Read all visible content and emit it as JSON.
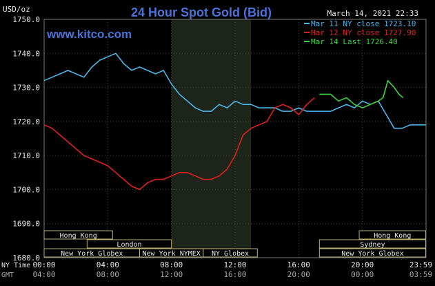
{
  "header": {
    "unit_label": "USD/oz",
    "title": "24 Hour Spot Gold (Bid)",
    "timestamp": "March 14, 2021 22:33",
    "watermark": "www.kitco.com"
  },
  "time_rows": [
    {
      "label": "NY Time",
      "ticks": [
        "00:00",
        "04:00",
        "08:00",
        "12:00",
        "16:00",
        "20:00",
        "23:59"
      ]
    },
    {
      "label": "GMT",
      "ticks": [
        "04:00",
        "08:00",
        "12:00",
        "16:00",
        "20:00",
        "00:00",
        "03:59"
      ]
    }
  ],
  "market_sessions": [
    {
      "name": "Hong Kong",
      "row": 0,
      "start_hour": 0.0,
      "end_hour": 4.3
    },
    {
      "name": "London",
      "row": 1,
      "start_hour": 2.7,
      "end_hour": 8.0
    },
    {
      "name": "New York Globex",
      "row": 2,
      "start_hour": 0.0,
      "end_hour": 6.0
    },
    {
      "name": "New York NYMEX",
      "row": 2,
      "start_hour": 6.0,
      "end_hour": 10.0
    },
    {
      "name": "NY Globex",
      "row": 2,
      "start_hour": 10.0,
      "end_hour": 13.4
    },
    {
      "name": "Hong Kong",
      "row": 0,
      "start_hour": 19.8,
      "end_hour": 23.98
    },
    {
      "name": "Sydney",
      "row": 1,
      "start_hour": 17.3,
      "end_hour": 23.98
    },
    {
      "name": "New York Globex",
      "row": 2,
      "start_hour": 17.3,
      "end_hour": 23.98
    }
  ],
  "chart_data": {
    "type": "line",
    "title": "24 Hour Spot Gold (Bid)",
    "ylabel": "USD/oz",
    "xlabel": "NY Time",
    "x_unit": "hours since 00:00 NY time",
    "xlim": [
      0,
      24
    ],
    "ylim": [
      1680,
      1750
    ],
    "yticks": [
      1680,
      1690,
      1700,
      1710,
      1720,
      1730,
      1740,
      1750
    ],
    "ytick_labels": [
      "1680.0",
      "1690.0",
      "1700.0",
      "1710.0",
      "1720.0",
      "1730.0",
      "1740.0",
      "1750.0"
    ],
    "highlight_band": {
      "start_hour": 8.0,
      "end_hour": 13.0
    },
    "grid": true,
    "legend_position": "top-right",
    "series": [
      {
        "name": "Mar 11 NY close 1723.10",
        "color": "#4fb6e8",
        "x": [
          0,
          0.5,
          1,
          1.5,
          2,
          2.5,
          3,
          3.5,
          4,
          4.5,
          5,
          5.5,
          6,
          6.5,
          7,
          7.5,
          8,
          8.5,
          9,
          9.5,
          10,
          10.5,
          11,
          11.5,
          12,
          12.5,
          13,
          13.5,
          14,
          14.5,
          15,
          15.5,
          16,
          16.5,
          17,
          17.5,
          18,
          18.5,
          19,
          19.5,
          20,
          20.5,
          21,
          21.5,
          22,
          22.5,
          23,
          23.5,
          23.98
        ],
        "y": [
          1732,
          1733,
          1734,
          1735,
          1734,
          1733,
          1736,
          1738,
          1739,
          1740,
          1737,
          1735,
          1736,
          1735,
          1734,
          1735,
          1731,
          1728,
          1726,
          1724,
          1723,
          1723,
          1725,
          1724,
          1726,
          1725,
          1725,
          1724,
          1724,
          1724,
          1723,
          1723,
          1724,
          1723,
          1723,
          1723,
          1723,
          1724,
          1725,
          1724,
          1726,
          1725,
          1726,
          1722,
          1718,
          1718,
          1719,
          1719,
          1719
        ]
      },
      {
        "name": "Mar 12 NY close 1727.90",
        "color": "#e02020",
        "x": [
          0,
          0.5,
          1,
          1.5,
          2,
          2.5,
          3,
          3.5,
          4,
          4.5,
          5,
          5.5,
          6,
          6.5,
          7,
          7.5,
          8,
          8.5,
          9,
          9.5,
          10,
          10.5,
          11,
          11.5,
          12,
          12.5,
          13,
          13.5,
          14,
          14.5,
          15,
          15.5,
          16,
          16.5,
          17
        ],
        "y": [
          1719,
          1718,
          1716,
          1714,
          1712,
          1710,
          1709,
          1708,
          1707,
          1705,
          1703,
          1701,
          1700,
          1702,
          1703,
          1703,
          1704,
          1705,
          1705,
          1704,
          1703,
          1703,
          1704,
          1706,
          1710,
          1716,
          1718,
          1719,
          1720,
          1724,
          1725,
          1724,
          1722,
          1725,
          1727
        ]
      },
      {
        "name": "Mar 14 Last 1726.40",
        "color": "#3ad53a",
        "x": [
          17.3,
          17.7,
          18,
          18.5,
          19,
          19.5,
          20,
          20.5,
          21,
          21.3,
          21.6,
          22,
          22.3,
          22.55
        ],
        "y": [
          1728,
          1728,
          1728,
          1726,
          1727,
          1725,
          1724,
          1725,
          1726,
          1727,
          1732,
          1730,
          1728,
          1727
        ]
      }
    ]
  }
}
